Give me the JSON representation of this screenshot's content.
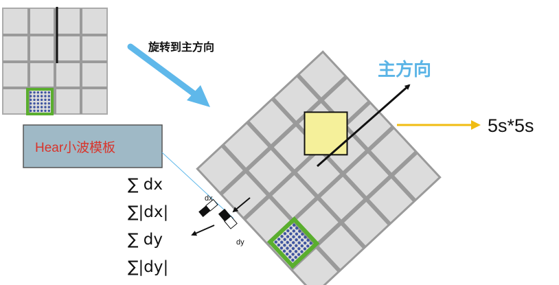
{
  "rotate_label": "旋转到主方向",
  "main_direction_label": "主方向",
  "window_size_label": "5s*5s",
  "haar_box_label": "Hear小波模板",
  "sums": [
    "∑ dx",
    "∑|dx|",
    "∑ dy",
    "∑|dy|"
  ],
  "haar_dx_label": "dx",
  "haar_dy_label": "dy",
  "colors": {
    "grid_fill": "#dcdcdc",
    "grid_line": "#9a9a9a",
    "haar_green": "#5aae2e",
    "dot_blue": "#3f55a0",
    "rotate_arrow": "#5fb8ea",
    "main_dir_text": "#5ab4e6",
    "window_yellow": "#f5f09a",
    "size_arrow": "#f0bc12",
    "haar_box_fill": "#9fb9c6",
    "haar_box_text": "#d8342b"
  }
}
